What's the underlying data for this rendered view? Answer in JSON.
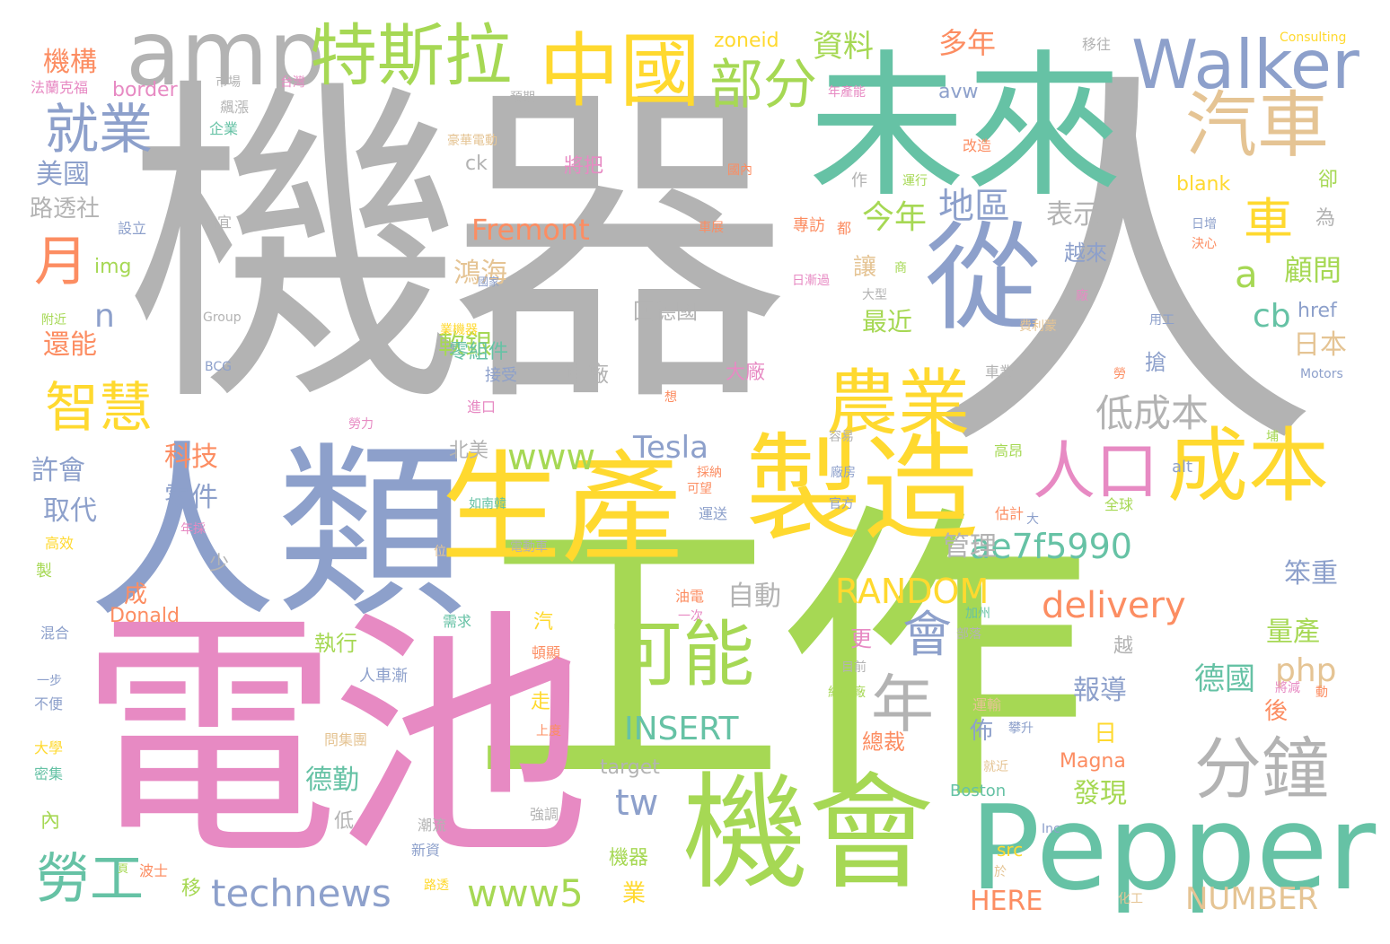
{
  "palette": {
    "gray": "#b3b3b3",
    "green": "#a6d854",
    "yellow": "#ffd92f",
    "pink": "#e78ac3",
    "teal": "#66c2a5",
    "blue": "#8da0cb",
    "tan": "#e5c494",
    "orange": "#fc8d62"
  },
  "words": [
    {
      "text": "機器",
      "color": "gray"
    },
    {
      "text": "人",
      "color": "gray"
    },
    {
      "text": "工作",
      "color": "green"
    },
    {
      "text": "電池",
      "color": "pink"
    },
    {
      "text": "人類",
      "color": "blue"
    },
    {
      "text": "未來",
      "color": "teal"
    },
    {
      "text": "生產",
      "color": "yellow"
    },
    {
      "text": "製造",
      "color": "yellow"
    },
    {
      "text": "機會",
      "color": "green"
    },
    {
      "text": "Pepper",
      "color": "teal"
    },
    {
      "text": "amp",
      "color": "gray"
    },
    {
      "text": "從",
      "color": "blue"
    },
    {
      "text": "中國",
      "color": "yellow"
    },
    {
      "text": "Walker",
      "color": "blue"
    },
    {
      "text": "特斯拉",
      "color": "green"
    },
    {
      "text": "汽車",
      "color": "tan"
    },
    {
      "text": "成本",
      "color": "yellow"
    },
    {
      "text": "可能",
      "color": "green"
    },
    {
      "text": "農業",
      "color": "yellow"
    },
    {
      "text": "分鐘",
      "color": "gray"
    },
    {
      "text": "人口",
      "color": "pink"
    },
    {
      "text": "就業",
      "color": "blue"
    },
    {
      "text": "部分",
      "color": "green"
    },
    {
      "text": "車",
      "color": "yellow"
    },
    {
      "text": "月",
      "color": "orange"
    },
    {
      "text": "智慧",
      "color": "yellow"
    },
    {
      "text": "勞工",
      "color": "teal"
    },
    {
      "text": "年",
      "color": "gray"
    },
    {
      "text": "會",
      "color": "blue"
    },
    {
      "text": "technews",
      "color": "blue"
    },
    {
      "text": "www5",
      "color": "green"
    },
    {
      "text": "www",
      "color": "green"
    },
    {
      "text": "低成本",
      "color": "gray"
    },
    {
      "text": "ae7f5990",
      "color": "teal"
    },
    {
      "text": "RANDOM",
      "color": "yellow"
    },
    {
      "text": "delivery",
      "color": "orange"
    },
    {
      "text": "Fremont",
      "color": "orange"
    },
    {
      "text": "INSERT",
      "color": "teal"
    },
    {
      "text": "NUMBER",
      "color": "tan"
    },
    {
      "text": "地區",
      "color": "blue"
    },
    {
      "text": "今年",
      "color": "green"
    },
    {
      "text": "資料",
      "color": "green"
    },
    {
      "text": "多年",
      "color": "orange"
    },
    {
      "text": "Tesla",
      "color": "blue"
    },
    {
      "text": "tw",
      "color": "blue"
    },
    {
      "text": "php",
      "color": "tan"
    },
    {
      "text": "cb",
      "color": "teal"
    },
    {
      "text": "a",
      "color": "green"
    },
    {
      "text": "n",
      "color": "blue"
    },
    {
      "text": "顧問",
      "color": "green"
    },
    {
      "text": "日本",
      "color": "tan"
    },
    {
      "text": "德國",
      "color": "teal"
    },
    {
      "text": "量產",
      "color": "green"
    },
    {
      "text": "笨重",
      "color": "blue"
    },
    {
      "text": "鴻海",
      "color": "tan"
    },
    {
      "text": "軟銀",
      "color": "green"
    },
    {
      "text": "表示",
      "color": "gray"
    },
    {
      "text": "機構",
      "color": "orange"
    },
    {
      "text": "美國",
      "color": "blue"
    },
    {
      "text": "路透社",
      "color": "gray"
    },
    {
      "text": "還能",
      "color": "orange"
    },
    {
      "text": "許會",
      "color": "blue"
    },
    {
      "text": "取代",
      "color": "blue"
    },
    {
      "text": "科技",
      "color": "orange"
    },
    {
      "text": "零件",
      "color": "blue"
    },
    {
      "text": "管理",
      "color": "gray"
    },
    {
      "text": "自動",
      "color": "gray"
    },
    {
      "text": "最近",
      "color": "green"
    },
    {
      "text": "報導",
      "color": "blue"
    },
    {
      "text": "發現",
      "color": "green"
    },
    {
      "text": "德勤",
      "color": "teal"
    },
    {
      "text": "執行",
      "color": "green"
    },
    {
      "text": "總裁",
      "color": "orange"
    },
    {
      "text": "零組件",
      "color": "teal"
    },
    {
      "text": "回德國",
      "color": "gray"
    },
    {
      "text": "越來",
      "color": "blue"
    },
    {
      "text": "車廠",
      "color": "gray"
    },
    {
      "text": "將把",
      "color": "pink"
    },
    {
      "text": "大廠",
      "color": "pink"
    },
    {
      "text": "北美",
      "color": "gray"
    },
    {
      "text": "zoneid",
      "color": "yellow"
    },
    {
      "text": "avw",
      "color": "blue"
    },
    {
      "text": "border",
      "color": "pink"
    },
    {
      "text": "img",
      "color": "green"
    },
    {
      "text": "blank",
      "color": "yellow"
    },
    {
      "text": "href",
      "color": "blue"
    },
    {
      "text": "Magna",
      "color": "orange"
    },
    {
      "text": "HERE",
      "color": "orange"
    },
    {
      "text": "target",
      "color": "gray"
    },
    {
      "text": "Donald",
      "color": "orange"
    },
    {
      "text": "Boston",
      "color": "teal"
    },
    {
      "text": "Consulting",
      "color": "yellow"
    },
    {
      "text": "Group",
      "color": "gray"
    },
    {
      "text": "BCG",
      "color": "blue"
    },
    {
      "text": "Motors",
      "color": "blue"
    },
    {
      "text": "Inc",
      "color": "blue"
    },
    {
      "text": "alt",
      "color": "blue"
    },
    {
      "text": "src",
      "color": "yellow"
    },
    {
      "text": "ck",
      "color": "gray"
    },
    {
      "text": "移往",
      "color": "gray"
    },
    {
      "text": "法蘭克福",
      "color": "pink"
    },
    {
      "text": "市場",
      "color": "gray"
    },
    {
      "text": "台灣",
      "color": "pink"
    },
    {
      "text": "飆漲",
      "color": "gray"
    },
    {
      "text": "企業",
      "color": "teal"
    },
    {
      "text": "預期",
      "color": "gray"
    },
    {
      "text": "豪華電動",
      "color": "tan"
    },
    {
      "text": "國內",
      "color": "orange"
    },
    {
      "text": "改造",
      "color": "orange"
    },
    {
      "text": "運行",
      "color": "green"
    },
    {
      "text": "年產能",
      "color": "pink"
    },
    {
      "text": "設立",
      "color": "blue"
    },
    {
      "text": "格宜",
      "color": "gray"
    },
    {
      "text": "車展",
      "color": "orange"
    },
    {
      "text": "專訪",
      "color": "orange"
    },
    {
      "text": "都",
      "color": "orange"
    },
    {
      "text": "日增",
      "color": "blue"
    },
    {
      "text": "決心",
      "color": "orange"
    },
    {
      "text": "卻",
      "color": "green"
    },
    {
      "text": "為",
      "color": "gray"
    },
    {
      "text": "讓",
      "color": "tan"
    },
    {
      "text": "商",
      "color": "green"
    },
    {
      "text": "大型",
      "color": "gray"
    },
    {
      "text": "作",
      "color": "gray"
    },
    {
      "text": "日漸過",
      "color": "pink"
    },
    {
      "text": "廠",
      "color": "pink"
    },
    {
      "text": "用工",
      "color": "blue"
    },
    {
      "text": "附近",
      "color": "green"
    },
    {
      "text": "國家",
      "color": "blue"
    },
    {
      "text": "業機器",
      "color": "yellow"
    },
    {
      "text": "費利蒙",
      "color": "tan"
    },
    {
      "text": "接受",
      "color": "blue"
    },
    {
      "text": "搶",
      "color": "blue"
    },
    {
      "text": "車業",
      "color": "gray"
    },
    {
      "text": "勞",
      "color": "orange"
    },
    {
      "text": "進口",
      "color": "pink"
    },
    {
      "text": "勞力",
      "color": "pink"
    },
    {
      "text": "想",
      "color": "orange"
    },
    {
      "text": "容易",
      "color": "gray"
    },
    {
      "text": "高昂",
      "color": "green"
    },
    {
      "text": "採納",
      "color": "orange"
    },
    {
      "text": "可望",
      "color": "orange"
    },
    {
      "text": "廠房",
      "color": "blue"
    },
    {
      "text": "官方",
      "color": "blue"
    },
    {
      "text": "全球",
      "color": "green"
    },
    {
      "text": "估計",
      "color": "orange"
    },
    {
      "text": "大",
      "color": "blue"
    },
    {
      "text": "年採",
      "color": "pink"
    },
    {
      "text": "如南韓",
      "color": "teal"
    },
    {
      "text": "運送",
      "color": "blue"
    },
    {
      "text": "高效",
      "color": "yellow"
    },
    {
      "text": "製",
      "color": "green"
    },
    {
      "text": "位",
      "color": "tan"
    },
    {
      "text": "電動車",
      "color": "gray"
    },
    {
      "text": "少",
      "color": "gray"
    },
    {
      "text": "成",
      "color": "orange"
    },
    {
      "text": "更",
      "color": "pink"
    },
    {
      "text": "佈",
      "color": "blue"
    },
    {
      "text": "日",
      "color": "yellow"
    },
    {
      "text": "後",
      "color": "orange"
    },
    {
      "text": "越",
      "color": "gray"
    },
    {
      "text": "油電",
      "color": "orange"
    },
    {
      "text": "一次",
      "color": "pink"
    },
    {
      "text": "加州",
      "color": "teal"
    },
    {
      "text": "部落",
      "color": "gray"
    },
    {
      "text": "混合",
      "color": "blue"
    },
    {
      "text": "需求",
      "color": "teal"
    },
    {
      "text": "汽",
      "color": "yellow"
    },
    {
      "text": "頓顯",
      "color": "orange"
    },
    {
      "text": "目前",
      "color": "gray"
    },
    {
      "text": "組裝廠",
      "color": "green"
    },
    {
      "text": "動",
      "color": "orange"
    },
    {
      "text": "將減",
      "color": "pink"
    },
    {
      "text": "一步",
      "color": "blue"
    },
    {
      "text": "不便",
      "color": "blue"
    },
    {
      "text": "人車漸",
      "color": "blue"
    },
    {
      "text": "走",
      "color": "yellow"
    },
    {
      "text": "上度",
      "color": "orange"
    },
    {
      "text": "運輸",
      "color": "tan"
    },
    {
      "text": "攀升",
      "color": "blue"
    },
    {
      "text": "大學",
      "color": "yellow"
    },
    {
      "text": "密集",
      "color": "teal"
    },
    {
      "text": "問集團",
      "color": "tan"
    },
    {
      "text": "就近",
      "color": "tan"
    },
    {
      "text": "內",
      "color": "green"
    },
    {
      "text": "低",
      "color": "gray"
    },
    {
      "text": "潮流",
      "color": "gray"
    },
    {
      "text": "強調",
      "color": "gray"
    },
    {
      "text": "新資",
      "color": "blue"
    },
    {
      "text": "機器",
      "color": "green"
    },
    {
      "text": "業",
      "color": "yellow"
    },
    {
      "text": "移",
      "color": "green"
    },
    {
      "text": "波士",
      "color": "orange"
    },
    {
      "text": "路透",
      "color": "yellow"
    },
    {
      "text": "於",
      "color": "tan"
    },
    {
      "text": "化工",
      "color": "tan"
    },
    {
      "text": "頁",
      "color": "green"
    },
    {
      "text": "埔",
      "color": "green"
    }
  ]
}
